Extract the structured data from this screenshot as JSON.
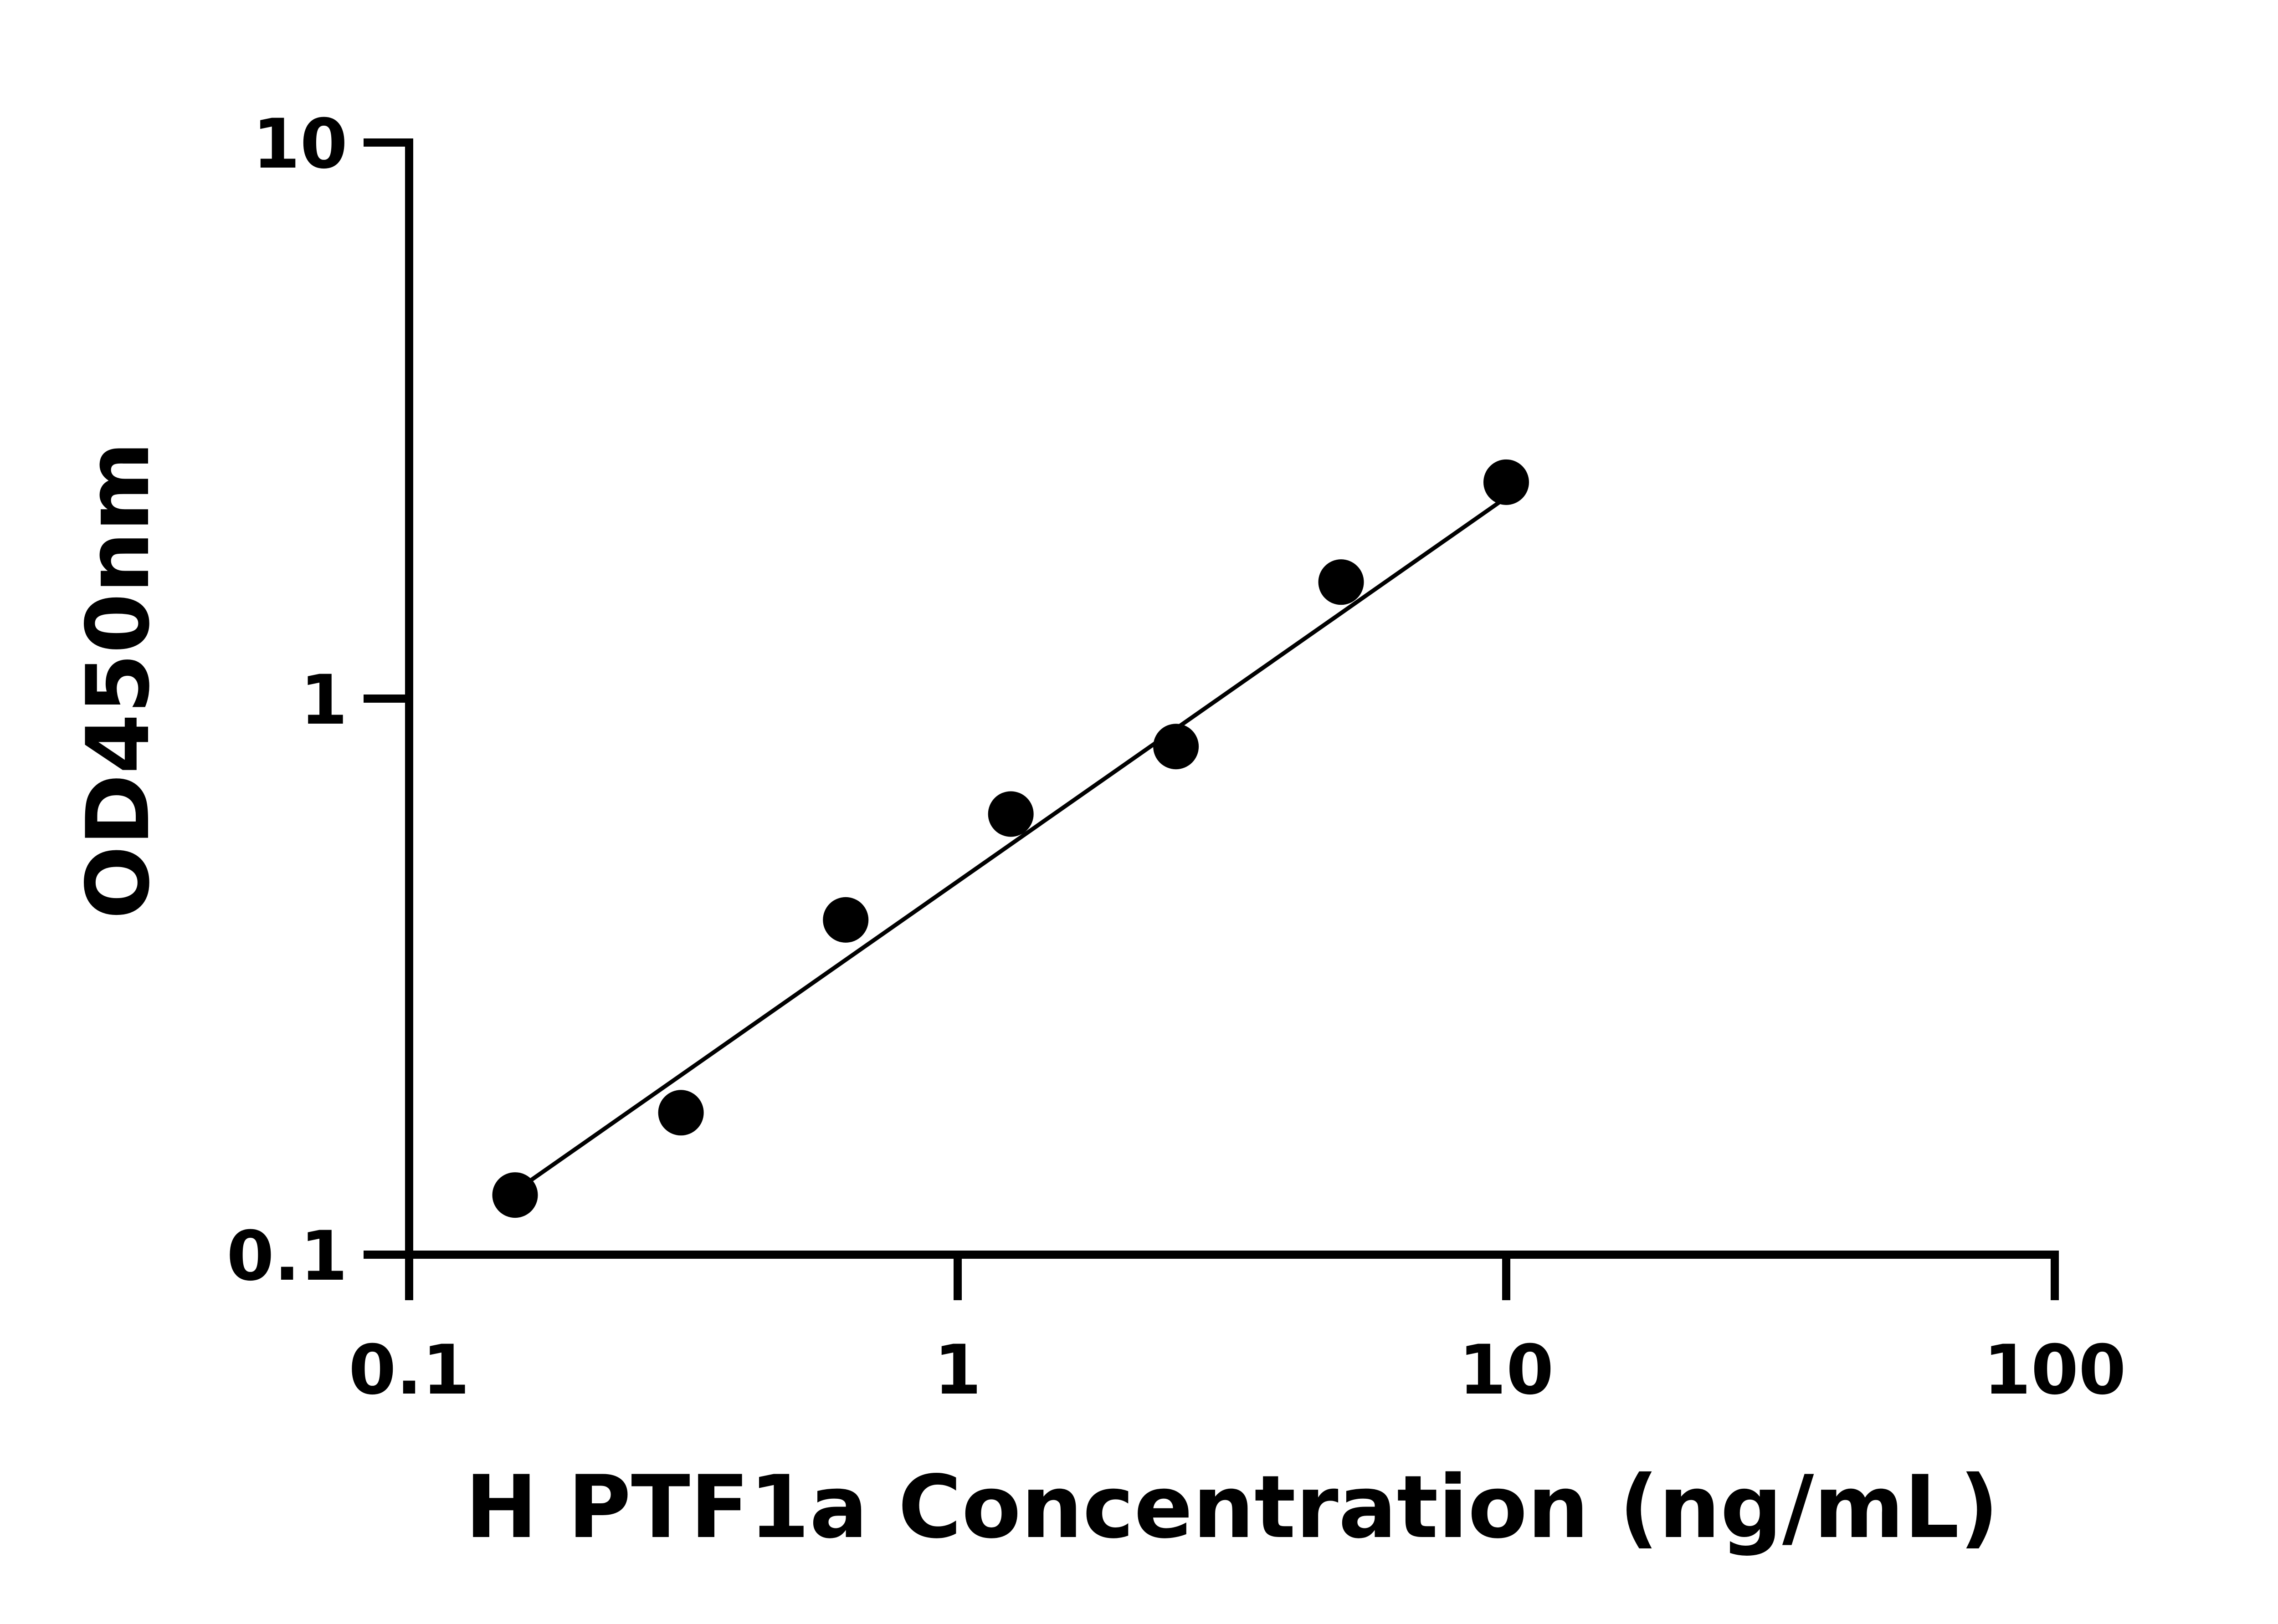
{
  "chart_data": {
    "type": "scatter",
    "xlabel": "H PTF1a Concentration (ng/mL)",
    "ylabel": "OD450nm",
    "x_scale": "log",
    "y_scale": "log",
    "xlim": [
      0.1,
      100
    ],
    "ylim": [
      0.1,
      10
    ],
    "x_ticks": [
      "0.1",
      "1",
      "10",
      "100"
    ],
    "y_ticks": [
      "0.1",
      "1",
      "10"
    ],
    "x_tick_values": [
      0.1,
      1,
      10,
      100
    ],
    "y_tick_values": [
      0.1,
      1,
      10
    ],
    "grid": false,
    "series": [
      {
        "points": [
          {
            "x": 0.156,
            "y": 0.128
          },
          {
            "x": 0.313,
            "y": 0.18
          },
          {
            "x": 0.625,
            "y": 0.4
          },
          {
            "x": 1.25,
            "y": 0.62
          },
          {
            "x": 2.5,
            "y": 0.82
          },
          {
            "x": 5,
            "y": 1.62
          },
          {
            "x": 10,
            "y": 2.45
          }
        ],
        "marker_color": "#000000"
      }
    ],
    "fit_line": {
      "x": [
        0.156,
        10
      ],
      "y": [
        0.13,
        2.3
      ],
      "color": "#000000"
    }
  }
}
